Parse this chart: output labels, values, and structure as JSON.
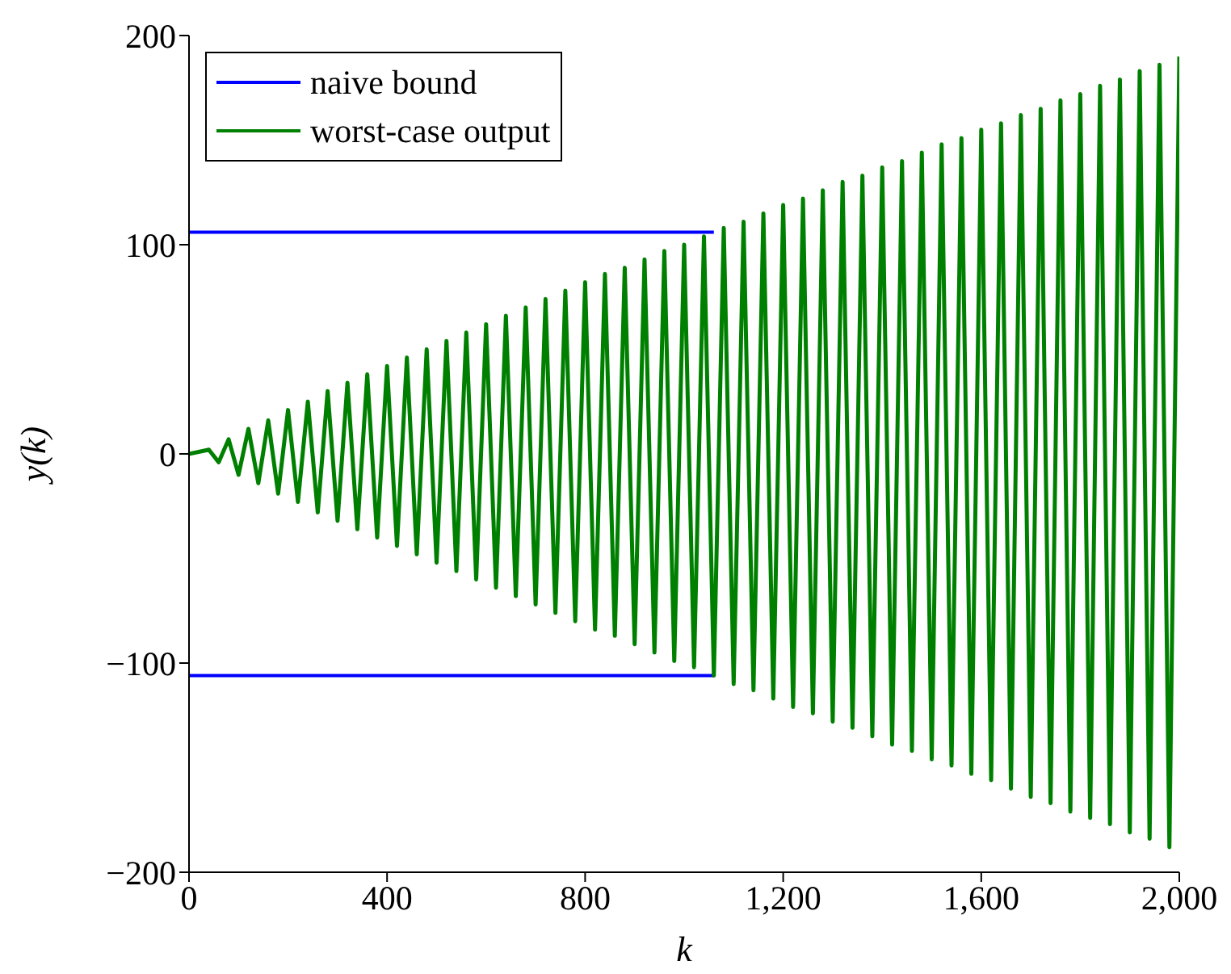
{
  "chart_data": {
    "type": "line",
    "xlabel": "k",
    "ylabel": "y(k)",
    "xlim": [
      0,
      2000
    ],
    "xticks": [
      0,
      400,
      800,
      {
        "value": 1200,
        "label": "1,200"
      },
      {
        "value": 1600,
        "label": "1,600"
      },
      {
        "value": 2000,
        "label": "2,000"
      }
    ],
    "ylim": [
      -200,
      200
    ],
    "yticks": [
      {
        "value": -200,
        "label": "−200"
      },
      {
        "value": -100,
        "label": "−100"
      },
      0,
      100,
      200
    ],
    "legend": "top left",
    "grid": false,
    "marker": "none",
    "line_style": "solid",
    "series": [
      {
        "name": "naive bound",
        "color": "#0000ff",
        "x": [
          0,
          1060
        ],
        "values": [
          106,
          106
        ]
      },
      {
        "color": "#0000ff",
        "x": [
          0,
          1060
        ],
        "values": [
          -106,
          -106
        ]
      },
      {
        "name": "worst-case output",
        "color": "#008000",
        "x": [
          0,
          40,
          60,
          80,
          100,
          120,
          140,
          160,
          180,
          200,
          220,
          240,
          260,
          280,
          300,
          320,
          340,
          360,
          380,
          400,
          420,
          440,
          460,
          480,
          500,
          520,
          540,
          560,
          580,
          600,
          620,
          640,
          660,
          680,
          700,
          720,
          740,
          760,
          780,
          800,
          820,
          840,
          860,
          880,
          900,
          920,
          940,
          960,
          980,
          1000,
          1020,
          1040,
          1060,
          1080,
          1100,
          1120,
          1140,
          1160,
          1180,
          1200,
          1220,
          1240,
          1260,
          1280,
          1300,
          1320,
          1340,
          1360,
          1380,
          1400,
          1420,
          1440,
          1460,
          1480,
          1500,
          1520,
          1540,
          1560,
          1580,
          1600,
          1620,
          1640,
          1660,
          1680,
          1700,
          1720,
          1740,
          1760,
          1780,
          1800,
          1820,
          1840,
          1860,
          1880,
          1900,
          1920,
          1940,
          1960,
          1980,
          2000
        ],
        "values": [
          0,
          2,
          -4,
          7,
          -10,
          12,
          -14,
          16,
          -19,
          21,
          -23,
          25,
          -28,
          30,
          -32,
          34,
          -36,
          38,
          -40,
          42,
          -44,
          46,
          -48,
          50,
          -52,
          54,
          -56,
          58,
          -60,
          62,
          -64,
          66,
          -68,
          70,
          -72,
          74,
          -76,
          78,
          -80,
          82,
          -84,
          86,
          -87,
          89,
          -91,
          93,
          -95,
          97,
          -99,
          100,
          -102,
          104,
          -106,
          108,
          -110,
          111,
          -113,
          115,
          -117,
          119,
          -121,
          122,
          -124,
          126,
          -128,
          130,
          -131,
          133,
          -135,
          137,
          -139,
          140,
          -142,
          144,
          -146,
          148,
          -149,
          151,
          -153,
          155,
          -156,
          158,
          -160,
          162,
          -164,
          165,
          -167,
          169,
          -171,
          172,
          -174,
          176,
          -177,
          179,
          -181,
          183,
          -184,
          186,
          -188,
          190
        ]
      }
    ]
  }
}
